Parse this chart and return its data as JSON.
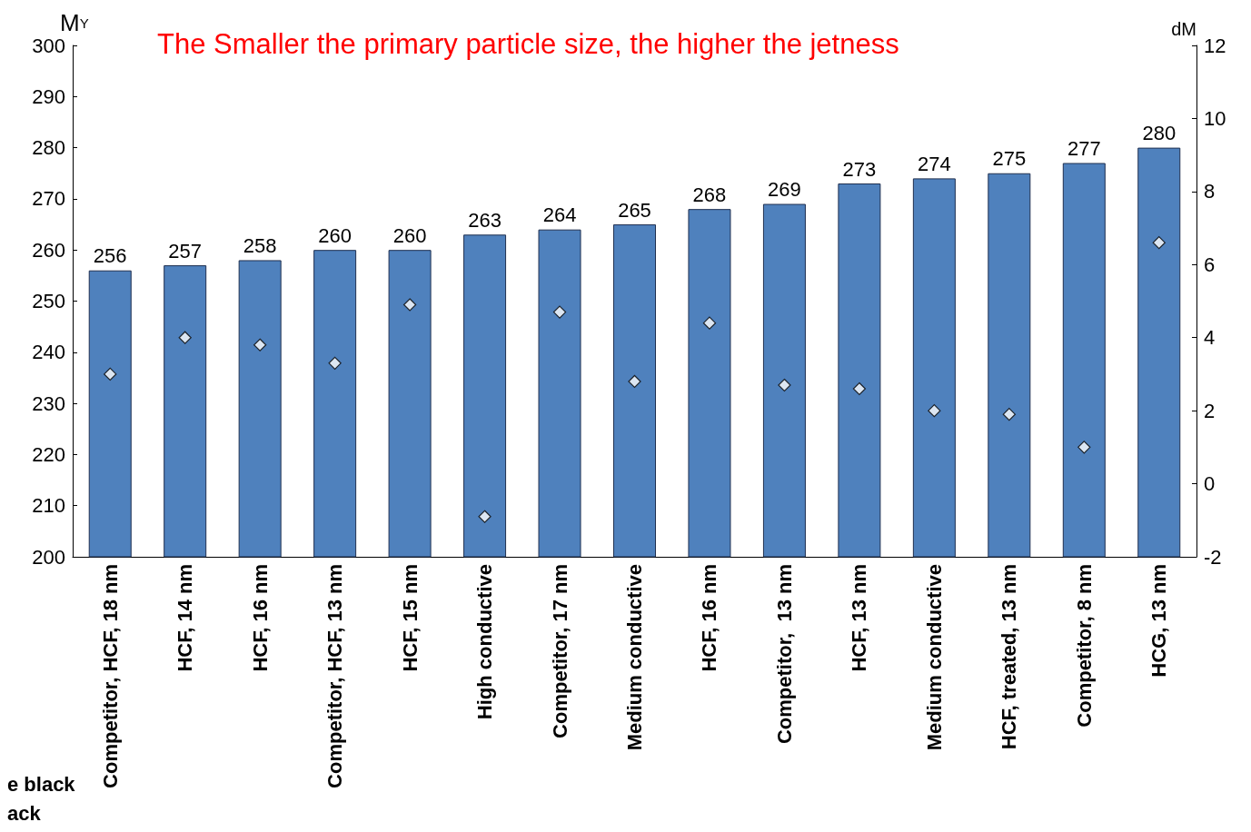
{
  "chart_data": {
    "type": "bar",
    "title": "The Smaller the primary particle size, the higher the jetness",
    "ylabel": "M$_{Y}$",
    "y2label": "dM",
    "categories": [
      "Competitor, HCF, 18 nm",
      "HCF, 14 nm",
      "HCF, 16 nm",
      "Competitor, HCF, 13 nm",
      "HCF, 15 nm",
      "High conductive",
      "Competitor, 17 nm",
      "Medium conductive",
      "HCF, 16 nm",
      "Competitor,  13 nm",
      "HCF, 13 nm",
      "Medium conductive",
      "HCF, treated, 13 nm",
      "Competitor, 8 nm",
      "HCG, 13 nm"
    ],
    "series": [
      {
        "color": "#4f81bd",
        "values": [
          256,
          257,
          258,
          260,
          260,
          263,
          264,
          265,
          268,
          269,
          273,
          274,
          275,
          277,
          280
        ],
        "value_labels": [
          "256",
          "257",
          "258",
          "260",
          "260",
          "263",
          "264",
          "265",
          "268",
          "269",
          "273",
          "274",
          "275",
          "277",
          "280"
        ]
      },
      {
        "type": "scatter",
        "axis": "y2",
        "color": "#ffffff",
        "marker": "diamond",
        "values": [
          3.0,
          4.0,
          3.8,
          3.3,
          4.9,
          -0.9,
          4.7,
          2.8,
          4.4,
          2.7,
          2.6,
          2.0,
          1.9,
          1.0,
          6.6
        ]
      }
    ],
    "ylim": [
      200,
      300
    ],
    "yticks": [
      200,
      210,
      220,
      230,
      240,
      250,
      260,
      270,
      280,
      290,
      300
    ],
    "y2lim": [
      -2,
      12
    ],
    "y2ticks": [
      -2,
      0,
      2,
      4,
      6,
      8,
      10,
      12
    ],
    "grid": false,
    "annotations": [
      "e black",
      "ack"
    ]
  }
}
